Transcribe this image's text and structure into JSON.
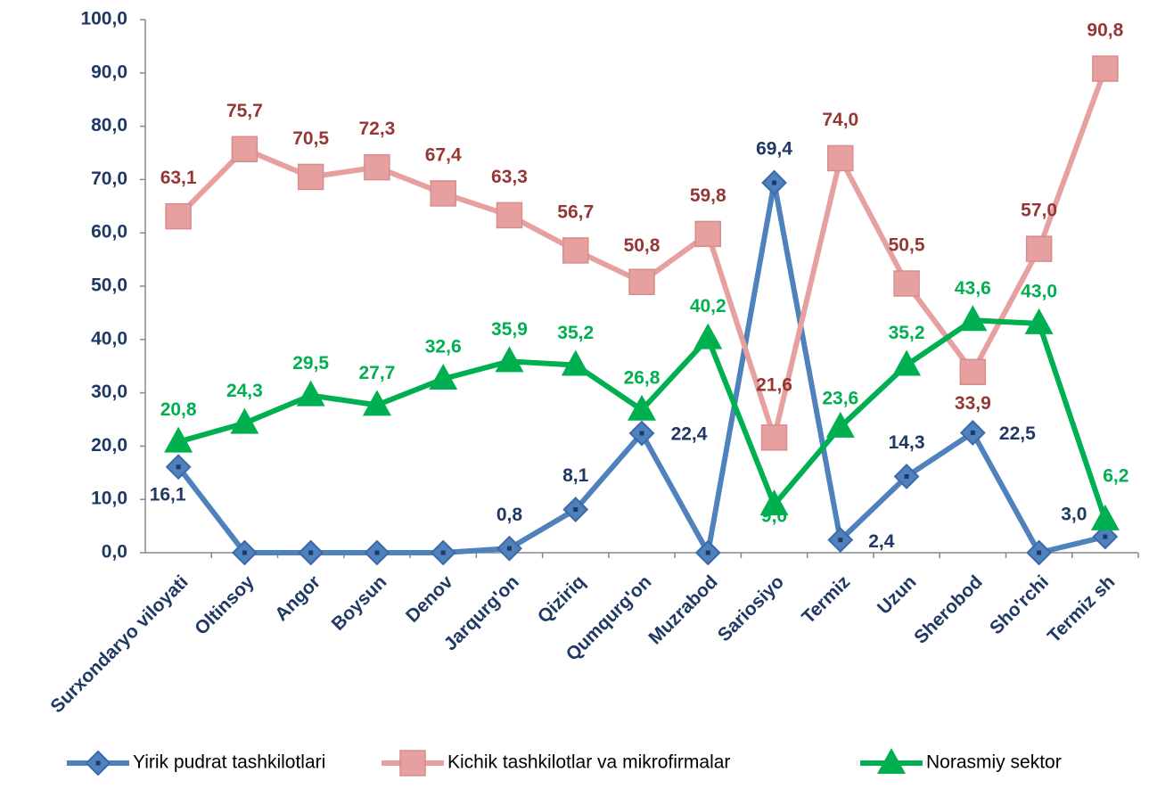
{
  "chart_data": {
    "type": "line",
    "categories": [
      "Surxondaryo viloyati",
      "Oltinsoy",
      "Angor",
      "Boysun",
      "Denov",
      "Jarqurg'on",
      "Qiziriq",
      "Qumqurg'on",
      "Muzrabod",
      "Sariosiyo",
      "Termiz",
      "Uzun",
      "Sherobod",
      "Sho'rchi",
      "Termiz sh"
    ],
    "series": [
      {
        "name": "Yirik pudrat tashkilotlari",
        "color": "#4f81bd",
        "marker": "diamond",
        "values": [
          16.1,
          0,
          0,
          0,
          0,
          0.8,
          8.1,
          22.4,
          0,
          69.4,
          2.4,
          14.3,
          22.5,
          0,
          3.0
        ],
        "value_labels": [
          "16,1",
          null,
          null,
          null,
          null,
          "0,8",
          "8,1",
          "22,4",
          null,
          "69,4",
          "2,4",
          "14,3",
          "22,5",
          null,
          "3,0"
        ]
      },
      {
        "name": "Kichik tashkilotlar va mikrofirmalar",
        "color": "#e6a0a0",
        "marker": "square",
        "values": [
          63.1,
          75.7,
          70.5,
          72.3,
          67.4,
          63.3,
          56.7,
          50.8,
          59.8,
          21.6,
          74.0,
          50.5,
          33.9,
          57.0,
          90.8
        ],
        "value_labels": [
          "63,1",
          "75,7",
          "70,5",
          "72,3",
          "67,4",
          "63,3",
          "56,7",
          "50,8",
          "59,8",
          "21,6",
          "74,0",
          "50,5",
          "33,9",
          "57,0",
          "90,8"
        ]
      },
      {
        "name": "Norasmiy sektor",
        "color": "#00b050",
        "marker": "triangle",
        "values": [
          20.8,
          24.3,
          29.5,
          27.7,
          32.6,
          35.9,
          35.2,
          26.8,
          40.2,
          9.0,
          23.6,
          35.2,
          43.6,
          43.0,
          6.2
        ],
        "value_labels": [
          "20,8",
          "24,3",
          "29,5",
          "27,7",
          "32,6",
          "35,9",
          "35,2",
          "26,8",
          "40,2",
          "9,0",
          "23,6",
          "35,2",
          "43,6",
          "43,0",
          "6,2"
        ]
      }
    ],
    "ylim": [
      0,
      100
    ],
    "yticks": [
      {
        "value": 0,
        "label": "0,0"
      },
      {
        "value": 10,
        "label": "10,0"
      },
      {
        "value": 20,
        "label": "20,0"
      },
      {
        "value": 30,
        "label": "30,0"
      },
      {
        "value": 40,
        "label": "40,0"
      },
      {
        "value": 50,
        "label": "50,0"
      },
      {
        "value": 60,
        "label": "60,0"
      },
      {
        "value": 70,
        "label": "70,0"
      },
      {
        "value": 80,
        "label": "80,0"
      },
      {
        "value": 90,
        "label": "90,0"
      },
      {
        "value": 100,
        "label": "100,0"
      }
    ],
    "legend": "bottom"
  }
}
